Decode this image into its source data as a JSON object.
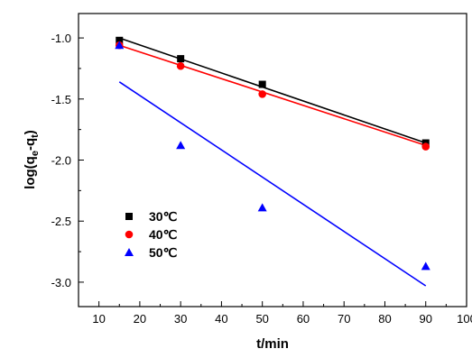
{
  "chart_data": {
    "type": "scatter",
    "xlabel": "t/min",
    "ylabel": "log(q",
    "ylabel_sub_e": "e",
    "ylabel_mid": "-q",
    "ylabel_sub_t": "t",
    "ylabel_end": ")",
    "xlim": [
      5,
      100
    ],
    "ylim": [
      -3.2,
      -0.8
    ],
    "xticks": [
      10,
      20,
      30,
      40,
      50,
      60,
      70,
      80,
      90,
      100
    ],
    "yticks": [
      -3.0,
      -2.5,
      -2.0,
      -1.5,
      -1.0
    ],
    "ytick_labels": [
      "-3.0",
      "-2.5",
      "-2.0",
      "-1.5",
      "-1.0"
    ],
    "legend_position": "lower-left",
    "series": [
      {
        "name": "30℃",
        "marker": "square",
        "color": "#000000",
        "x": [
          15,
          30,
          50,
          90
        ],
        "y": [
          -1.02,
          -1.17,
          -1.38,
          -1.86
        ],
        "fit": {
          "x": [
            15,
            90
          ],
          "y": [
            -1.0,
            -1.86
          ]
        }
      },
      {
        "name": "40℃",
        "marker": "circle",
        "color": "#ff0000",
        "x": [
          15,
          30,
          50,
          90
        ],
        "y": [
          -1.06,
          -1.23,
          -1.46,
          -1.89
        ],
        "fit": {
          "x": [
            15,
            90
          ],
          "y": [
            -1.06,
            -1.88
          ]
        }
      },
      {
        "name": "50℃",
        "marker": "triangle",
        "color": "#0000ff",
        "x": [
          15,
          30,
          50,
          90
        ],
        "y": [
          -1.06,
          -1.88,
          -2.39,
          -2.87
        ],
        "fit": {
          "x": [
            15,
            90
          ],
          "y": [
            -1.36,
            -3.03
          ]
        }
      }
    ]
  }
}
